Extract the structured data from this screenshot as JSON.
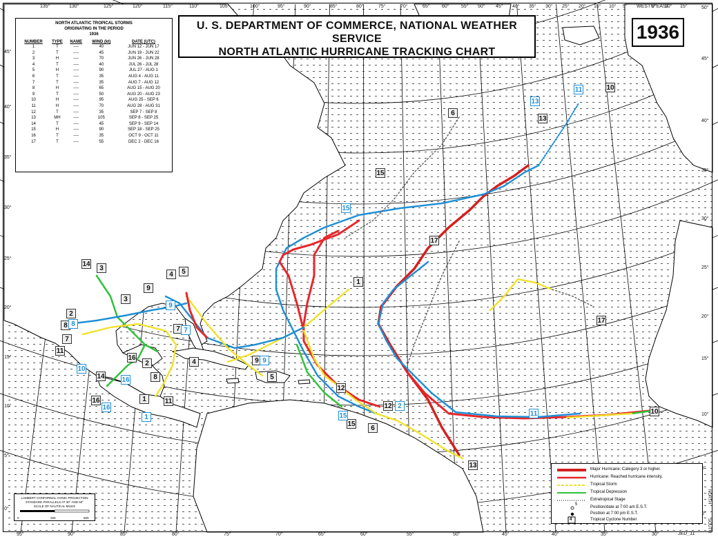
{
  "title": {
    "line1": "U. S. DEPARTMENT OF COMMERCE, NATIONAL WEATHER SERVICE",
    "line2": "NORTH ATLANTIC HURRICANE TRACKING CHART"
  },
  "year": "1936",
  "table": {
    "heading1": "NORTH ATLANTIC TROPICAL STORMS",
    "heading2": "ORIGINATING IN THE PERIOD",
    "heading3": "1936",
    "columns": [
      "NUMBER",
      "TYPE",
      "NAME",
      "WIND (kt)",
      "DATE (UTC)"
    ],
    "rows": [
      [
        "1",
        "T",
        "----",
        "40",
        "JUN 12 - JUN 17"
      ],
      [
        "2",
        "T",
        "----",
        "45",
        "JUN 19 - JUN 22"
      ],
      [
        "3",
        "H",
        "----",
        "70",
        "JUN 26 - JUN 28"
      ],
      [
        "4",
        "T",
        "----",
        "40",
        "JUL 26 - JUL 28"
      ],
      [
        "5",
        "H",
        "----",
        "90",
        "JUL 27 - AUG 1"
      ],
      [
        "6",
        "T",
        "----",
        "35",
        "AUG 4 - AUG 11"
      ],
      [
        "7",
        "T",
        "----",
        "35",
        "AUG 7 - AUG 12"
      ],
      [
        "8",
        "H",
        "----",
        "65",
        "AUG 15 - AUG 20"
      ],
      [
        "9",
        "T",
        "----",
        "50",
        "AUG 20 - AUG 23"
      ],
      [
        "10",
        "H",
        "----",
        "95",
        "AUG 25 - SEP 6"
      ],
      [
        "11",
        "H",
        "----",
        "70",
        "AUG 28 - AUG 31"
      ],
      [
        "12",
        "T",
        "----",
        "35",
        "SEP 7 - SEP 8"
      ],
      [
        "13",
        "MH",
        "----",
        "105",
        "SEP 8 - SEP 25"
      ],
      [
        "14",
        "T",
        "----",
        "45",
        "SEP 9 - SEP 14"
      ],
      [
        "15",
        "H",
        "----",
        "90",
        "SEP 18 - SEP 25"
      ],
      [
        "16",
        "T",
        "----",
        "35",
        "OCT 9 - OCT 11"
      ],
      [
        "17",
        "T",
        "----",
        "55",
        "DEC 2 - DEC 16"
      ]
    ]
  },
  "top_longitudes": [
    "135°",
    "130°",
    "125°",
    "120°",
    "115°",
    "110°",
    "105°",
    "100°",
    "95°",
    "90°",
    "85°",
    "80°",
    "75°",
    "70°",
    "65°",
    "60°",
    "55°",
    "50°",
    "45°",
    "40°",
    "35°",
    "30°",
    "25°",
    "20°",
    "15°",
    "10°",
    "5°",
    "WEST 0°EAST",
    "5°",
    "10°",
    "15°"
  ],
  "bottom_longitudes": [
    "95°",
    "90°",
    "85°",
    "80°",
    "75°",
    "70°",
    "65°",
    "60°",
    "55°",
    "50°",
    "45°",
    "40°",
    "35°",
    "30°"
  ],
  "left_latitudes": [
    "45°",
    "40°",
    "35°",
    "30°",
    "25°",
    "20°",
    "15°",
    "10°",
    "5°",
    "0°"
  ],
  "right_latitudes": [
    "50°",
    "45°",
    "40°",
    "35°",
    "30°",
    "25°",
    "20°",
    "15°",
    "10°",
    "5°",
    "0°"
  ],
  "north_label": "NORTH",
  "south_label": "SOUTH",
  "legend": {
    "major": "Major Hurricane: Category 3 or higher.",
    "hurricane": "Hurricane: Reached hurricane intensity.",
    "storm": "Tropical Storm",
    "depression": "Tropical Depression",
    "extratropical": "Extratropical Stage",
    "pos7am": "Position/date at 7:00 am E.S.T.",
    "pos7pm": "Position at 7:00 pm E.S.T.",
    "cyclone_number": "Tropical Cyclone Number",
    "sample_date": "5",
    "sample_number": "4"
  },
  "projection": {
    "line1": "LAMBERT CONFORMAL CONIC PROJECTION",
    "line2": "STANDARD PARALLELS AT 30° AND 60°",
    "line3": "SCALE OF NAUTICAL MILES",
    "scale": [
      "0",
      "250",
      "500"
    ]
  },
  "credit": "JED_11",
  "colors": {
    "major": "#d42020",
    "hurricane": "#e8262a",
    "storm": "#f0e22a",
    "depression": "#2fc23a",
    "blue_track": "#1f8fd6",
    "land": "#ffffff",
    "grid": "#000000"
  },
  "storm_labels": [
    {
      "id": "1",
      "text": "1"
    },
    {
      "id": "1b",
      "text": "1"
    },
    {
      "id": "1c",
      "text": "1"
    },
    {
      "id": "2",
      "text": "2"
    },
    {
      "id": "2b",
      "text": "2"
    },
    {
      "id": "2c",
      "text": "2"
    },
    {
      "id": "3",
      "text": "3"
    },
    {
      "id": "3b",
      "text": "3"
    },
    {
      "id": "4",
      "text": "4"
    },
    {
      "id": "4b",
      "text": "4"
    },
    {
      "id": "5",
      "text": "5"
    },
    {
      "id": "5b",
      "text": "5"
    },
    {
      "id": "6",
      "text": "6"
    },
    {
      "id": "6b",
      "text": "6"
    },
    {
      "id": "7",
      "text": "7"
    },
    {
      "id": "7b",
      "text": "7"
    },
    {
      "id": "7c",
      "text": "7"
    },
    {
      "id": "8",
      "text": "8"
    },
    {
      "id": "8b",
      "text": "8"
    },
    {
      "id": "8c",
      "text": "8"
    },
    {
      "id": "9",
      "text": "9"
    },
    {
      "id": "9b",
      "text": "9"
    },
    {
      "id": "9c",
      "text": "9"
    },
    {
      "id": "9d",
      "text": "9"
    },
    {
      "id": "10",
      "text": "10"
    },
    {
      "id": "10b",
      "text": "10"
    },
    {
      "id": "10c",
      "text": "10"
    },
    {
      "id": "11",
      "text": "11"
    },
    {
      "id": "11b",
      "text": "11"
    },
    {
      "id": "11c",
      "text": "11"
    },
    {
      "id": "11d",
      "text": "11"
    },
    {
      "id": "12",
      "text": "12"
    },
    {
      "id": "12b",
      "text": "12"
    },
    {
      "id": "13",
      "text": "13"
    },
    {
      "id": "13b",
      "text": "13"
    },
    {
      "id": "13c",
      "text": "13"
    },
    {
      "id": "14",
      "text": "14"
    },
    {
      "id": "14b",
      "text": "14"
    },
    {
      "id": "15",
      "text": "15"
    },
    {
      "id": "15b",
      "text": "15"
    },
    {
      "id": "15c",
      "text": "15"
    },
    {
      "id": "15d",
      "text": "15"
    },
    {
      "id": "16",
      "text": "16"
    },
    {
      "id": "16b",
      "text": "16"
    },
    {
      "id": "16c",
      "text": "16"
    },
    {
      "id": "16d",
      "text": "16"
    },
    {
      "id": "17",
      "text": "17"
    },
    {
      "id": "17b",
      "text": "17"
    }
  ]
}
